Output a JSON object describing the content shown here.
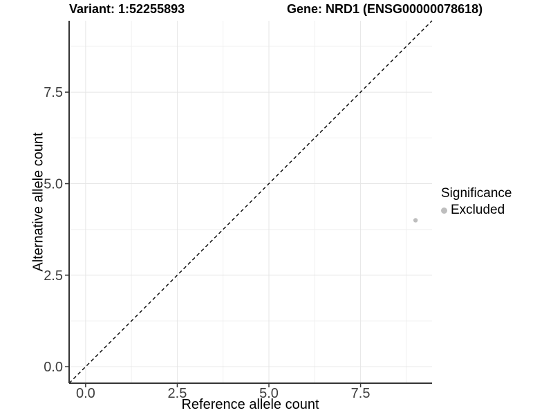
{
  "figure": {
    "background": "#ffffff"
  },
  "header": {
    "variant_title": "Variant: 1:52255893",
    "gene_title": "Gene: NRD1 (ENSG00000078618)"
  },
  "chart_data": {
    "type": "scatter",
    "title_left": "Variant: 1:52255893",
    "title_right": "Gene: NRD1 (ENSG00000078618)",
    "xlabel": "Reference allele count",
    "ylabel": "Alternative allele count",
    "xlim": [
      -0.45,
      9.45
    ],
    "ylim": [
      -0.45,
      9.45
    ],
    "x_ticks": [
      0.0,
      2.5,
      5.0,
      7.5
    ],
    "y_ticks": [
      0.0,
      2.5,
      5.0,
      7.5
    ],
    "x_minor_ticks": [
      1.25,
      3.75,
      6.25,
      8.75
    ],
    "y_minor_ticks": [
      1.25,
      3.75,
      6.25,
      8.75
    ],
    "grid": true,
    "points": [
      {
        "x": 9,
        "y": 4,
        "series": "Excluded",
        "color": "#bebebe",
        "radius": 3.2
      }
    ],
    "reference_line": {
      "type": "abline",
      "slope": 1,
      "intercept": 0,
      "style": "dashed",
      "color": "#000000"
    },
    "legend": {
      "title": "Significance",
      "position": "right",
      "items": [
        {
          "label": "Excluded",
          "color": "#bebebe"
        }
      ]
    },
    "colors": {
      "major_grid": "#e6e6e6",
      "minor_grid": "#f0f0f0",
      "axis_line": "#333333",
      "tick_mark": "#333333",
      "tick_label": "#3d3d3d"
    }
  }
}
